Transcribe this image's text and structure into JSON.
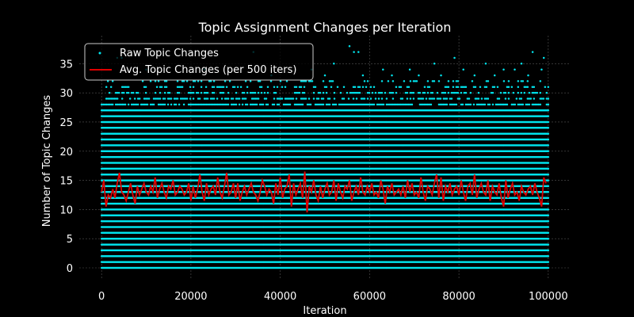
{
  "chart_data": {
    "type": "scatter",
    "title": "Topic Assignment Changes per Iteration",
    "xlabel": "Iteration",
    "ylabel": "Number of Topic Changes",
    "xlim": [
      -5000,
      105000
    ],
    "ylim": [
      -1.9,
      39.8
    ],
    "x_ticks": [
      0,
      20000,
      40000,
      60000,
      80000,
      100000
    ],
    "y_ticks": [
      0,
      5,
      10,
      15,
      20,
      25,
      30,
      35
    ],
    "grid": true,
    "legend_position": "top-left",
    "background": "#000000",
    "series": [
      {
        "name": "Raw Topic Changes",
        "kind": "scatter",
        "color": "#00e5ee",
        "x_range": [
          0,
          100000
        ],
        "dense_levels": [
          0,
          1,
          2,
          3,
          4,
          5,
          6,
          7,
          8,
          9,
          10,
          11,
          12,
          13,
          14,
          15,
          16,
          17,
          18,
          19,
          20,
          21,
          22,
          23,
          24,
          25,
          26,
          27
        ],
        "sparse_levels": [
          28,
          29,
          30,
          31,
          32
        ],
        "outliers": [
          {
            "x": 3500,
            "y": 36
          },
          {
            "x": 4500,
            "y": 36
          },
          {
            "x": 34000,
            "y": 37
          },
          {
            "x": 55500,
            "y": 38
          },
          {
            "x": 56500,
            "y": 37
          },
          {
            "x": 57500,
            "y": 37
          },
          {
            "x": 52000,
            "y": 35
          },
          {
            "x": 74500,
            "y": 35
          },
          {
            "x": 79000,
            "y": 36
          },
          {
            "x": 86000,
            "y": 35
          },
          {
            "x": 94000,
            "y": 35
          },
          {
            "x": 96500,
            "y": 37
          },
          {
            "x": 99000,
            "y": 36
          },
          {
            "x": 10000,
            "y": 34
          },
          {
            "x": 23000,
            "y": 34
          },
          {
            "x": 47000,
            "y": 34
          },
          {
            "x": 63000,
            "y": 34
          },
          {
            "x": 69000,
            "y": 34
          },
          {
            "x": 81000,
            "y": 34
          },
          {
            "x": 90000,
            "y": 34
          },
          {
            "x": 92500,
            "y": 34
          },
          {
            "x": 98500,
            "y": 34
          },
          {
            "x": 38000,
            "y": 33
          },
          {
            "x": 50000,
            "y": 33
          },
          {
            "x": 58500,
            "y": 33
          },
          {
            "x": 65000,
            "y": 33
          },
          {
            "x": 71000,
            "y": 33
          },
          {
            "x": 76000,
            "y": 33
          },
          {
            "x": 83500,
            "y": 33
          },
          {
            "x": 88000,
            "y": 33
          },
          {
            "x": 95500,
            "y": 33
          }
        ]
      },
      {
        "name": "Avg. Topic Changes (per 500 iters)",
        "kind": "line",
        "color": "#e00000",
        "x_start": 0,
        "x_step": 500,
        "values": [
          13.0,
          15.0,
          10.5,
          12.5,
          12.0,
          13.5,
          12.0,
          14.5,
          16.3,
          13.0,
          12.5,
          11.5,
          13.0,
          14.5,
          12.5,
          11.0,
          14.0,
          12.5,
          13.5,
          14.5,
          13.0,
          12.5,
          14.0,
          13.0,
          15.5,
          12.0,
          13.5,
          14.5,
          13.0,
          12.0,
          14.0,
          13.5,
          15.0,
          12.5,
          13.0,
          14.0,
          13.5,
          12.5,
          13.0,
          14.5,
          11.5,
          14.0,
          12.0,
          13.5,
          16.0,
          13.0,
          11.5,
          14.5,
          12.5,
          13.5,
          14.0,
          12.5,
          15.5,
          13.0,
          12.0,
          14.0,
          16.3,
          12.5,
          13.0,
          14.5,
          12.0,
          14.5,
          11.5,
          13.0,
          14.0,
          12.5,
          13.5,
          14.5,
          13.0,
          12.5,
          11.5,
          13.0,
          15.0,
          14.0,
          12.5,
          13.5,
          13.0,
          11.0,
          14.5,
          12.5,
          15.5,
          12.0,
          13.5,
          14.0,
          16.0,
          10.5,
          14.5,
          12.5,
          13.5,
          14.5,
          12.0,
          16.5,
          9.5,
          14.0,
          13.0,
          15.0,
          12.5,
          11.5,
          14.0,
          12.0,
          13.5,
          14.5,
          12.5,
          13.0,
          15.0,
          11.5,
          14.5,
          13.0,
          12.0,
          14.0,
          13.5,
          15.0,
          11.5,
          13.0,
          14.0,
          12.5,
          15.5,
          13.0,
          12.5,
          14.0,
          13.0,
          14.5,
          12.5,
          13.0,
          12.0,
          15.0,
          13.5,
          11.0,
          14.0,
          13.0,
          14.5,
          12.5,
          13.0,
          13.5,
          12.5,
          14.0,
          12.0,
          15.0,
          13.0,
          14.5,
          12.5,
          13.0,
          12.0,
          15.5,
          13.0,
          11.5,
          14.0,
          13.5,
          12.5,
          14.5,
          16.0,
          12.0,
          15.5,
          11.5,
          14.0,
          13.0,
          14.5,
          12.5,
          13.5,
          14.0,
          12.5,
          15.0,
          13.0,
          11.5,
          14.0,
          14.5,
          12.5,
          16.0,
          12.0,
          13.5,
          14.5,
          13.0,
          12.5,
          15.0,
          11.5,
          14.0,
          13.0,
          12.5,
          14.5,
          12.0,
          10.5,
          15.0,
          12.0,
          13.5,
          14.5,
          12.5,
          13.0,
          11.5,
          14.0,
          13.0,
          12.5,
          13.5,
          14.0,
          12.5,
          14.5,
          13.0,
          12.0,
          10.5,
          15.5,
          14.5
        ]
      }
    ]
  }
}
